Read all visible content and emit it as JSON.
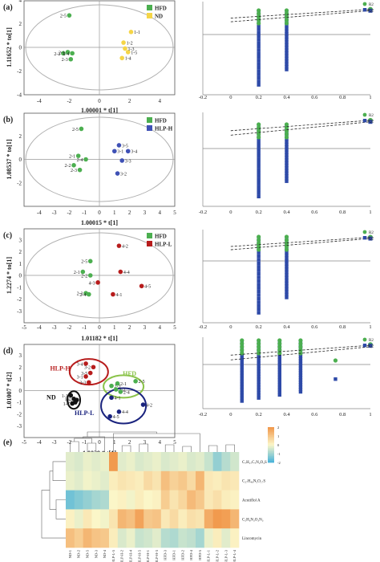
{
  "chart_data": [
    {
      "type": "scatter",
      "panel_label": "(a)",
      "xlabel": "1.00001 * t[1]",
      "ylabel": "1.11652 * to[1]",
      "xlim": [
        -5,
        5
      ],
      "ylim": [
        -4,
        4
      ],
      "xticks": [
        "-4",
        "-2",
        "0",
        "2",
        "4"
      ],
      "yticks": [
        "-4",
        "-2",
        "0",
        "2",
        "4"
      ],
      "legend": [
        {
          "name": "HFD",
          "color": "#4caf50"
        },
        {
          "name": "ND",
          "color": "#f5d547"
        }
      ],
      "groups": [
        {
          "name": "HFD",
          "color": "#4caf50",
          "points": [
            {
              "label": "2-5",
              "x": -2.0,
              "y": 2.7
            },
            {
              "label": "2-2",
              "x": -2.4,
              "y": -0.5
            },
            {
              "label": "2-1",
              "x": -2.1,
              "y": -0.4
            },
            {
              "label": "2-4",
              "x": -1.8,
              "y": -0.5
            },
            {
              "label": "2-3",
              "x": -1.9,
              "y": -1.0
            }
          ]
        },
        {
          "name": "ND",
          "color": "#f5d547",
          "points": [
            {
              "label": "1-1",
              "x": 2.1,
              "y": 1.3
            },
            {
              "label": "1-2",
              "x": 1.6,
              "y": 0.4
            },
            {
              "label": "1-5",
              "x": 1.9,
              "y": -0.4
            },
            {
              "label": "1-3",
              "x": 1.7,
              "y": -0.1
            },
            {
              "label": "1-4",
              "x": 1.5,
              "y": -0.9
            }
          ]
        }
      ]
    },
    {
      "type": "scatter",
      "panel_label": "(b)",
      "xlabel": "1.00015 * t[1]",
      "ylabel": "1.08537 * to[1]",
      "xlim": [
        -5,
        5
      ],
      "ylim": [
        -4,
        4
      ],
      "xticks": [
        "-4",
        "-3",
        "-2",
        "-1",
        "0",
        "1",
        "2",
        "3",
        "4",
        "5"
      ],
      "yticks": [
        "-2",
        "0",
        "2"
      ],
      "legend": [
        {
          "name": "HFD",
          "color": "#4caf50"
        },
        {
          "name": "HLP-H",
          "color": "#3f51b5"
        }
      ],
      "groups": [
        {
          "name": "HFD",
          "color": "#4caf50",
          "points": [
            {
              "label": "2-5",
              "x": -1.2,
              "y": 2.6
            },
            {
              "label": "2-1",
              "x": -1.4,
              "y": 0.3
            },
            {
              "label": "2-4",
              "x": -0.9,
              "y": 0.0
            },
            {
              "label": "2-2",
              "x": -1.7,
              "y": -0.5
            },
            {
              "label": "2-3",
              "x": -1.3,
              "y": -0.9
            }
          ]
        },
        {
          "name": "HLP-H",
          "color": "#3f51b5",
          "points": [
            {
              "label": "3-5",
              "x": 1.3,
              "y": 1.2
            },
            {
              "label": "3-4",
              "x": 1.9,
              "y": 0.7
            },
            {
              "label": "3-1",
              "x": 1.0,
              "y": 0.7
            },
            {
              "label": "3-3",
              "x": 1.5,
              "y": -0.1
            },
            {
              "label": "3-2",
              "x": 1.2,
              "y": -1.2
            }
          ]
        }
      ]
    },
    {
      "type": "scatter",
      "panel_label": "(c)",
      "xlabel": "1.01182 * t[1]",
      "ylabel": "1.2274 * to[1]",
      "xlim": [
        -5,
        5
      ],
      "ylim": [
        -4,
        4
      ],
      "xticks": [
        "-5",
        "-4",
        "-3",
        "-2",
        "-1",
        "0",
        "1",
        "2",
        "3",
        "4",
        "5"
      ],
      "yticks": [
        "-3",
        "-2",
        "-1",
        "0",
        "1",
        "2",
        "3"
      ],
      "legend": [
        {
          "name": "HFD",
          "color": "#4caf50"
        },
        {
          "name": "HLP-L",
          "color": "#b71c1c"
        }
      ],
      "groups": [
        {
          "name": "HFD",
          "color": "#4caf50",
          "points": [
            {
              "label": "2-5",
              "x": -0.6,
              "y": 1.2
            },
            {
              "label": "2-1",
              "x": -1.1,
              "y": 0.3
            },
            {
              "label": "2-2",
              "x": -0.6,
              "y": 0.0
            },
            {
              "label": "2-3",
              "x": -0.9,
              "y": -1.5
            },
            {
              "label": "2-4",
              "x": -0.7,
              "y": -1.6
            }
          ]
        },
        {
          "name": "HLP-L",
          "color": "#b71c1c",
          "points": [
            {
              "label": "4-2",
              "x": 1.3,
              "y": 2.5
            },
            {
              "label": "4-4",
              "x": 1.4,
              "y": 0.3
            },
            {
              "label": "4-3",
              "x": -0.1,
              "y": -0.6
            },
            {
              "label": "4-1",
              "x": 0.9,
              "y": -1.6
            },
            {
              "label": "4-5",
              "x": 2.8,
              "y": -0.9
            }
          ]
        }
      ]
    },
    {
      "type": "scatter",
      "panel_label": "(d)",
      "xlabel": "1.0039 * t[1]",
      "ylabel": "1.01007 * t[2]",
      "xlim": [
        -5,
        5
      ],
      "ylim": [
        -4,
        4
      ],
      "xticks": [
        "-5",
        "-4",
        "-3",
        "-2",
        "-1",
        "0",
        "1",
        "2",
        "3",
        "4",
        "5"
      ],
      "yticks": [
        "-3",
        "-2",
        "-1",
        "0",
        "1",
        "2",
        "3"
      ],
      "legend": [],
      "groups": [
        {
          "name": "ND",
          "color": "#111111",
          "points": [
            {
              "label": "1-1",
              "x": -1.9,
              "y": -0.4
            },
            {
              "label": "1-2",
              "x": -1.7,
              "y": -0.7
            },
            {
              "label": "1-5",
              "x": -1.5,
              "y": -0.8
            },
            {
              "label": "1-3",
              "x": -1.6,
              "y": -1.0
            },
            {
              "label": "1-4",
              "x": -1.8,
              "y": -1.1
            }
          ]
        },
        {
          "name": "HLP-H",
          "color": "#b71c1c",
          "points": [
            {
              "label": "3-4",
              "x": -0.9,
              "y": 2.3
            },
            {
              "label": "3-2",
              "x": -0.4,
              "y": 2.0
            },
            {
              "label": "3-5",
              "x": -0.6,
              "y": 1.5
            },
            {
              "label": "3-1",
              "x": -0.9,
              "y": 1.2
            },
            {
              "label": "3-3",
              "x": -0.7,
              "y": 0.7
            }
          ]
        },
        {
          "name": "HFD",
          "color": "#4caf50",
          "points": [
            {
              "label": "2-5",
              "x": 2.4,
              "y": 0.8
            },
            {
              "label": "2-1",
              "x": 1.2,
              "y": 0.6
            },
            {
              "label": "2-3",
              "x": 0.8,
              "y": 0.4
            },
            {
              "label": "2-2",
              "x": 1.1,
              "y": 0.1
            },
            {
              "label": "2-4",
              "x": 1.4,
              "y": -0.1
            }
          ]
        },
        {
          "name": "HLP-L",
          "color": "#1a237e",
          "points": [
            {
              "label": "4-1",
              "x": 0.8,
              "y": -0.6
            },
            {
              "label": "4-2",
              "x": 2.9,
              "y": -1.2
            },
            {
              "label": "4-4",
              "x": 1.3,
              "y": -1.8
            },
            {
              "label": "4-5",
              "x": 0.7,
              "y": -2.2
            }
          ]
        }
      ],
      "ellipse_labels": [
        {
          "text": "HLP-H",
          "color": "#b71c1c"
        },
        {
          "text": "HFD",
          "color": "#8bc34a"
        },
        {
          "text": "ND",
          "color": "#111111"
        },
        {
          "text": "HLP-L",
          "color": "#1a237e"
        }
      ]
    }
  ],
  "permutation_plots": [
    {
      "xticks": [
        "-0.2",
        "0",
        "0.2",
        "0.4",
        "0.6",
        "0.8",
        "1"
      ],
      "legend": [
        "R2",
        "Q2"
      ],
      "r2_line": [
        [
          0,
          0.62
        ],
        [
          1,
          0.95
        ]
      ],
      "q2_line": [
        [
          0,
          0.48
        ],
        [
          1,
          0.9
        ]
      ]
    },
    {
      "xticks": [
        "-0.2",
        "0",
        "0.2",
        "0.4",
        "0.6",
        "0.8",
        "1"
      ],
      "legend": [
        "R2",
        "Q2"
      ],
      "r2_line": [
        [
          0,
          0.6
        ],
        [
          1,
          0.95
        ]
      ],
      "q2_line": [
        [
          0,
          0.45
        ],
        [
          1,
          0.9
        ]
      ]
    },
    {
      "xticks": [
        "-0.2",
        "0",
        "0.2",
        "0.4",
        "0.6",
        "0.8",
        "1"
      ],
      "legend": [
        "R2",
        "Q2"
      ],
      "r2_line": [
        [
          0,
          0.58
        ],
        [
          1,
          0.95
        ]
      ],
      "q2_line": [
        [
          0,
          0.45
        ],
        [
          1,
          0.9
        ]
      ]
    },
    {
      "xticks": [
        "-0.2",
        "0",
        "0.2",
        "0.4",
        "0.6",
        "0.8",
        "1"
      ],
      "legend": [
        "R2",
        "Q2"
      ],
      "r2_line": [
        [
          0,
          0.45
        ],
        [
          1,
          0.92
        ]
      ],
      "q2_line": [
        [
          0,
          0.22
        ],
        [
          1,
          0.85
        ]
      ]
    }
  ],
  "heatmap": {
    "type": "heatmap",
    "panel_label": "(e)",
    "rows": [
      "C₇H₁₇C₇N₂O₃S",
      "C₂₇H₄₆N₃O₁₇S",
      "Acutiflol A",
      "C₅H₆N₃O₃N₃",
      "Lincomycin"
    ],
    "row_labels_print": [
      "C₇H₁₇C₇N₂O₃S",
      "C₂₇H₄₆N₃O₁₇S",
      "Acutiflol A",
      "C₅H₆N₃O₃N₃",
      ""
    ],
    "last_row_label": "Lincomycin",
    "columns": [
      "ND-1",
      "ND-2",
      "ND-5",
      "ND-3",
      "ND-4",
      "HLP-L-5",
      "HLP-H-2",
      "HLP-H-4",
      "HLP-H-5",
      "HLP-H-1",
      "HLP-H-3",
      "HFD-3",
      "HFD-1",
      "HFD-2",
      "HFD-4",
      "HFD-5",
      "HLP-L-1",
      "HLP-L-2",
      "HLP-L-3",
      "HLP-L-4"
    ],
    "values": [
      [
        -0.3,
        -0.4,
        -0.2,
        -0.3,
        -0.2,
        2.0,
        -0.3,
        -0.2,
        -0.4,
        -0.3,
        -0.2,
        -0.4,
        -0.3,
        -0.2,
        -0.4,
        -0.3,
        -0.6,
        -1.2,
        -0.8,
        -0.5
      ],
      [
        -0.2,
        -0.3,
        -0.1,
        -0.2,
        -0.3,
        0.2,
        0.4,
        0.3,
        0.2,
        0.6,
        0.4,
        1.2,
        0.8,
        1.0,
        0.6,
        1.4,
        0.3,
        0.2,
        0.4,
        0.3
      ],
      [
        -1.6,
        -1.4,
        -1.2,
        -1.0,
        -0.9,
        0.0,
        0.1,
        -0.1,
        0.2,
        0.0,
        0.1,
        0.9,
        0.4,
        0.7,
        1.3,
        1.0,
        0.3,
        0.5,
        0.2,
        0.1
      ],
      [
        0.1,
        -0.2,
        0.3,
        0.0,
        -0.1,
        0.4,
        1.4,
        1.2,
        1.8,
        1.0,
        1.1,
        0.3,
        0.6,
        0.2,
        0.5,
        0.4,
        1.6,
        2.0,
        1.9,
        1.4
      ],
      [
        1.2,
        0.9,
        1.4,
        1.1,
        1.0,
        0.2,
        -0.4,
        -0.2,
        -0.6,
        -0.5,
        -0.3,
        -0.8,
        -0.9,
        -0.6,
        -0.7,
        -1.0,
        -0.2,
        0.2,
        -0.3,
        0.1
      ]
    ],
    "color_scale": {
      "min": -2,
      "max": 2,
      "low": "#4fb5d9",
      "mid": "#fbf6c8",
      "high": "#f19a4e"
    },
    "legend_ticks": [
      "2",
      "1",
      "0",
      "-1",
      "-2"
    ]
  }
}
